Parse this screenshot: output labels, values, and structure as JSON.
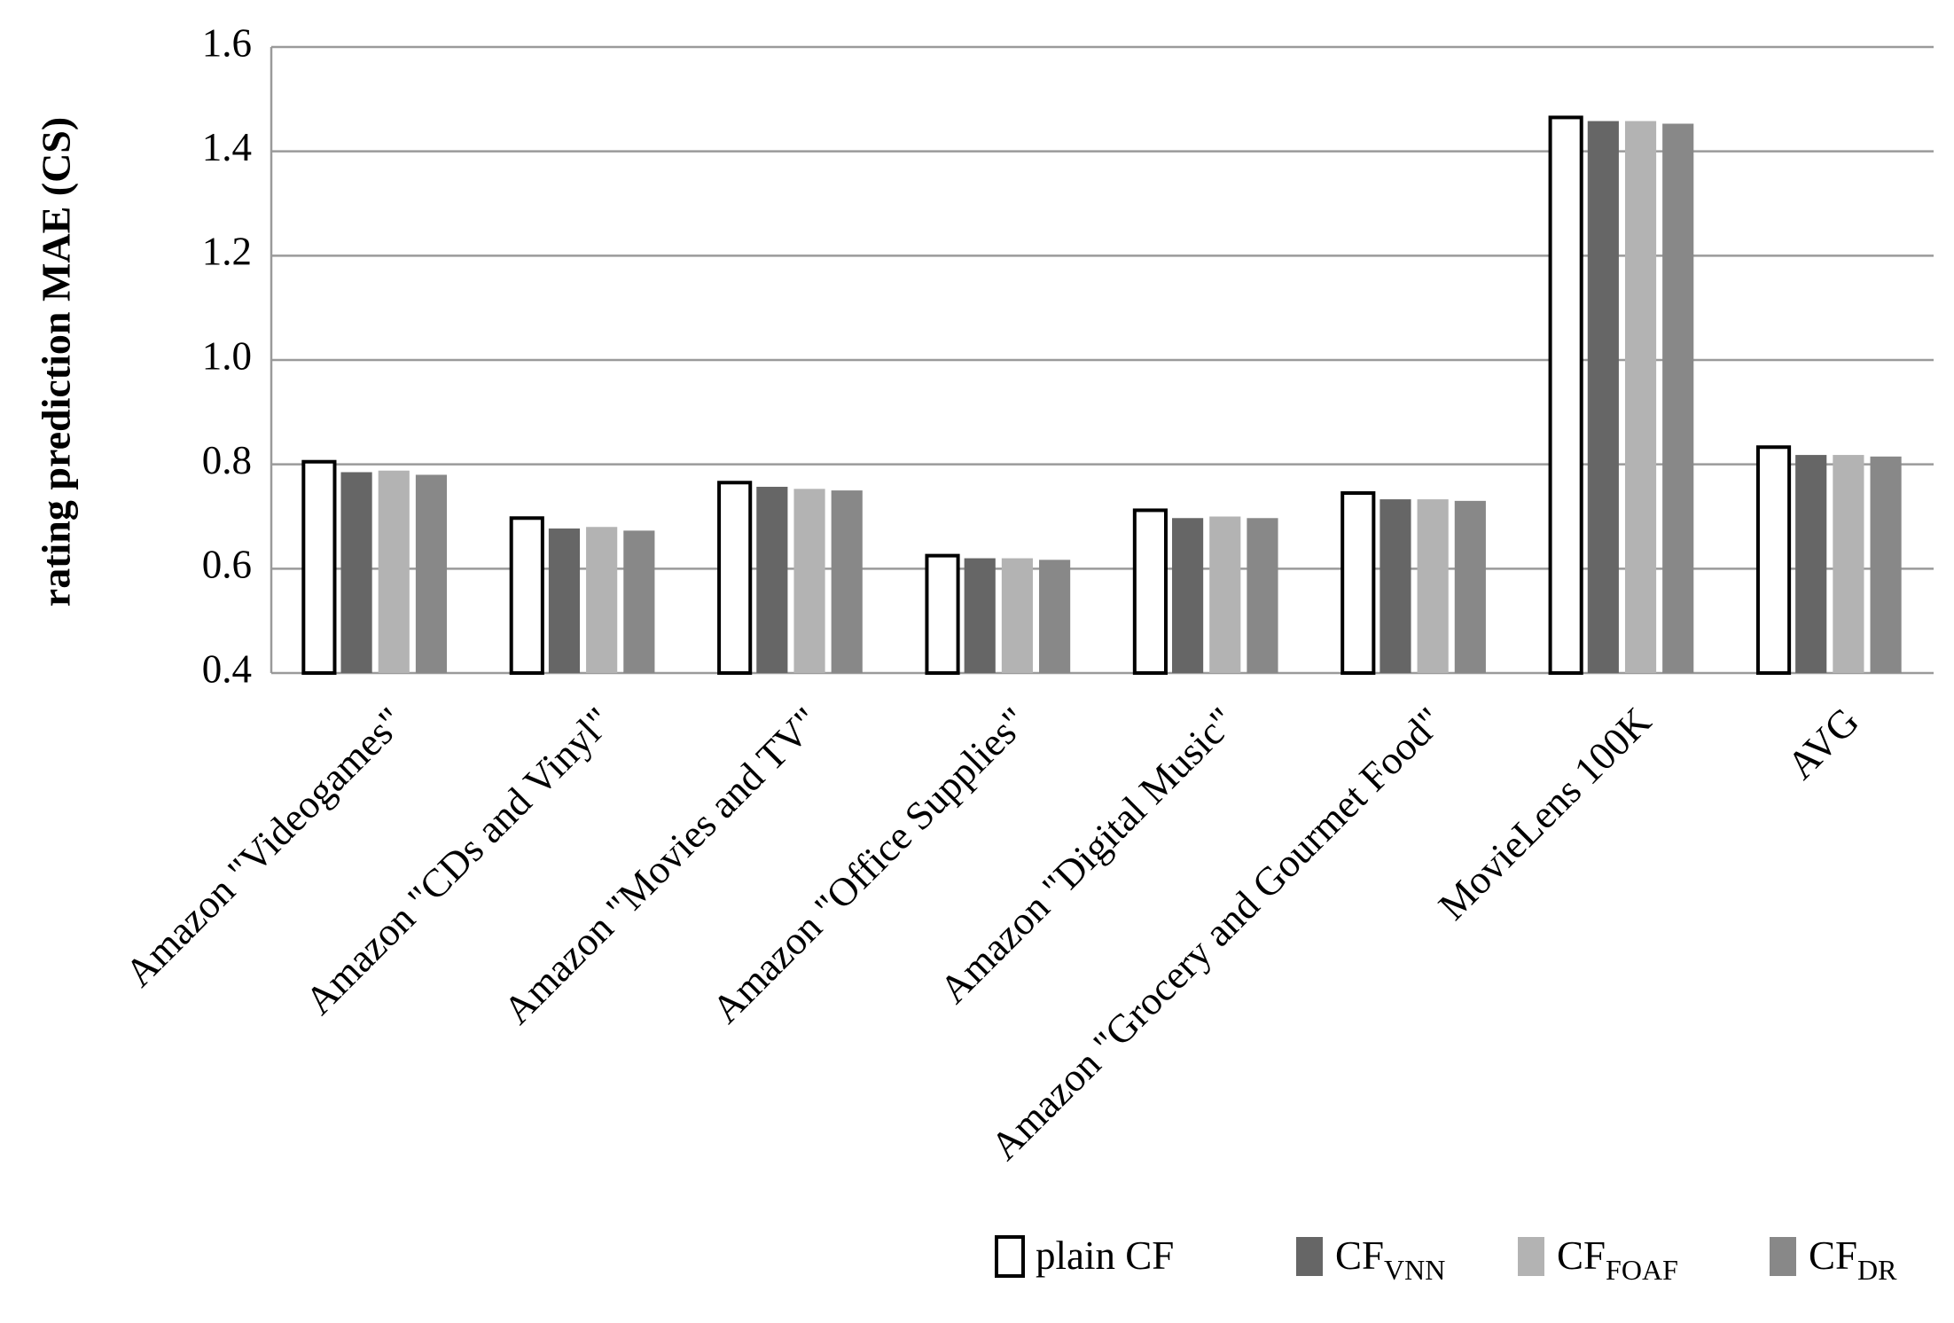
{
  "chart_data": {
    "type": "bar",
    "y_axis_label": "rating prediction MAE (CS)",
    "categories": [
      "Amazon \"Videogames\"",
      "Amazon \"CDs and Vinyl\"",
      "Amazon \"Movies and TV\"",
      "Amazon \"Office Supplies\"",
      "Amazon \"Digital Music\"",
      "Amazon \"Grocery and Gourmet Food\"",
      "MovieLens 100K",
      "AVG"
    ],
    "series": [
      {
        "name": "plain CF",
        "color": "#ffffff",
        "values": [
          0.805,
          0.697,
          0.765,
          0.625,
          0.712,
          0.745,
          1.465,
          0.833
        ]
      },
      {
        "name": "CF",
        "subscript": "VNN",
        "color": "#666666",
        "values": [
          0.785,
          0.677,
          0.757,
          0.62,
          0.697,
          0.733,
          1.458,
          0.818
        ]
      },
      {
        "name": "CF",
        "subscript": "FOAF",
        "color": "#b3b3b3",
        "values": [
          0.788,
          0.68,
          0.753,
          0.62,
          0.7,
          0.733,
          1.458,
          0.818
        ]
      },
      {
        "name": "CF",
        "subscript": "DR",
        "color": "#888888",
        "values": [
          0.78,
          0.673,
          0.75,
          0.617,
          0.697,
          0.73,
          1.453,
          0.815
        ]
      }
    ],
    "ylim": [
      0.4,
      1.6
    ],
    "yticks": [
      0.4,
      0.6,
      0.8,
      {
        "value": 1,
        "label": "1.0"
      },
      1.2,
      1.4,
      1.6
    ],
    "grid": true,
    "legend": "bottom-right"
  }
}
